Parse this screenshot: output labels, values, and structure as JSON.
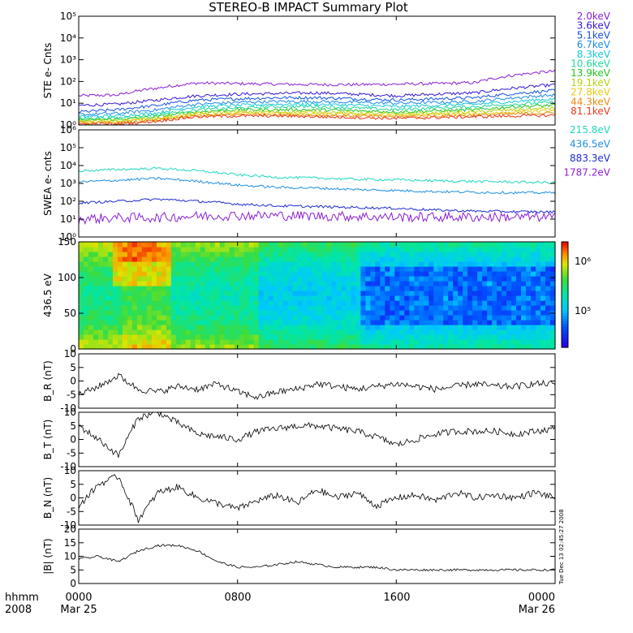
{
  "title": "STEREO-B IMPACT Summary Plot",
  "stamp": "Tue Dec 13 02:45:27 2008",
  "chart_data": [
    {
      "id": "ste",
      "type": "line",
      "ylabel": "STE e- Cnts",
      "yscale": "log",
      "ylim": [
        1,
        100000
      ],
      "yticks": [
        "10⁰",
        "10¹",
        "10²",
        "10³",
        "10⁴",
        "10⁵"
      ],
      "x": [
        0,
        2,
        4,
        6,
        8,
        10,
        12,
        14,
        16,
        18,
        20,
        22,
        24
      ],
      "series": [
        {
          "name": "2.0keV",
          "color": "#8B1FD6",
          "values": [
            22,
            24,
            50,
            85,
            80,
            75,
            72,
            72,
            75,
            80,
            88,
            200,
            300
          ]
        },
        {
          "name": "3.6keV",
          "color": "#3316D6",
          "values": [
            8,
            9,
            14,
            22,
            26,
            28,
            30,
            26,
            22,
            26,
            30,
            50,
            70
          ]
        },
        {
          "name": "5.1keV",
          "color": "#1450E0",
          "values": [
            4,
            5,
            8,
            14,
            16,
            18,
            18,
            16,
            14,
            16,
            18,
            28,
            38
          ]
        },
        {
          "name": "6.7keV",
          "color": "#1E8AE6",
          "values": [
            3,
            3.4,
            5,
            9,
            11,
            12,
            12,
            11,
            10,
            11,
            12,
            18,
            24
          ]
        },
        {
          "name": "8.3keV",
          "color": "#16C8D8",
          "values": [
            2.4,
            2.6,
            3.6,
            7,
            8,
            9,
            9,
            8,
            7,
            8,
            9,
            12,
            16
          ]
        },
        {
          "name": "10.6keV",
          "color": "#1ED89A",
          "values": [
            2,
            2.1,
            3,
            5,
            6,
            7,
            7,
            6,
            5,
            6,
            7,
            9,
            11
          ]
        },
        {
          "name": "13.9keV",
          "color": "#22C620",
          "values": [
            1.7,
            1.8,
            2.4,
            4,
            5,
            5,
            5,
            4.5,
            4,
            4.5,
            5,
            7,
            8
          ]
        },
        {
          "name": "19.1keV",
          "color": "#B4D410",
          "values": [
            1.5,
            1.6,
            2,
            3.4,
            4,
            4,
            4,
            3.6,
            3.2,
            3.6,
            4,
            5,
            6
          ]
        },
        {
          "name": "27.8keV",
          "color": "#E8C810",
          "values": [
            1.3,
            1.4,
            1.8,
            3,
            3.4,
            3.4,
            3.2,
            3,
            2.8,
            3,
            3.2,
            4,
            4.5
          ]
        },
        {
          "name": "44.3keV",
          "color": "#E88A10",
          "values": [
            1.2,
            1.2,
            1.6,
            2.6,
            3,
            3,
            2.8,
            2.6,
            2.4,
            2.6,
            2.8,
            3.2,
            3.6
          ]
        },
        {
          "name": "81.1keV",
          "color": "#E8381A",
          "values": [
            1.1,
            1.1,
            1.5,
            2.4,
            2.6,
            2.6,
            2.4,
            2.2,
            2,
            2.2,
            2.4,
            2.6,
            2.8
          ]
        }
      ]
    },
    {
      "id": "swea",
      "type": "line",
      "ylabel": "SWEA e- cnts",
      "yscale": "log",
      "ylim": [
        1,
        1000000
      ],
      "yticks": [
        "10⁰",
        "10¹",
        "10²",
        "10³",
        "10⁴",
        "10⁵",
        "10⁶"
      ],
      "x": [
        0,
        2,
        4,
        6,
        8,
        10,
        12,
        14,
        16,
        18,
        20,
        22,
        24
      ],
      "series": [
        {
          "name": "215.8eV",
          "color": "#1ED8C0",
          "values": [
            5000,
            6000,
            7000,
            5000,
            3000,
            2200,
            2000,
            1700,
            1600,
            1400,
            1300,
            1200,
            1100
          ]
        },
        {
          "name": "436.5eV",
          "color": "#1E90E0",
          "values": [
            1200,
            1500,
            1900,
            1300,
            800,
            600,
            550,
            450,
            400,
            350,
            320,
            300,
            300
          ]
        },
        {
          "name": "883.3eV",
          "color": "#1E2AD0",
          "values": [
            80,
            100,
            130,
            100,
            70,
            55,
            50,
            45,
            40,
            32,
            28,
            26,
            25
          ]
        },
        {
          "name": "1787.2eV",
          "color": "#8B1FD6",
          "values": [
            10,
            12,
            12,
            15,
            16,
            16,
            15,
            14,
            13,
            13,
            13,
            13,
            13
          ]
        }
      ]
    },
    {
      "id": "pad",
      "type": "heatmap",
      "ylabel": "436.5 eV",
      "ylim": [
        0,
        180
      ],
      "yticks": [
        "0",
        "50",
        "100",
        "150"
      ],
      "colorbar": {
        "ticks": [
          "10⁶",
          "10⁵"
        ]
      }
    },
    {
      "id": "br",
      "type": "line",
      "ylabel": "B_R (nT)",
      "ylim": [
        -10,
        10
      ],
      "yticks": [
        "-10",
        "-5",
        "0",
        "5",
        "10"
      ],
      "x": [
        0,
        1,
        2,
        3,
        4,
        5,
        6,
        7,
        8,
        9,
        10,
        11,
        12,
        13,
        14,
        15,
        16,
        17,
        18,
        19,
        20,
        21,
        22,
        23,
        24
      ],
      "values": [
        -5,
        -2,
        2,
        -3,
        -4,
        -2,
        -3,
        -1,
        -4,
        -6,
        -4,
        -3,
        -1,
        -2,
        -3,
        -2,
        -1,
        -2,
        -3,
        -2,
        -1,
        -2,
        -2,
        -1,
        -1
      ]
    },
    {
      "id": "bt",
      "type": "line",
      "ylabel": "B_T (nT)",
      "ylim": [
        -10,
        10
      ],
      "yticks": [
        "-10",
        "-5",
        "0",
        "5",
        "10"
      ],
      "x": [
        0,
        1,
        2,
        3,
        4,
        5,
        6,
        7,
        8,
        9,
        10,
        11,
        12,
        13,
        14,
        15,
        16,
        17,
        18,
        19,
        20,
        21,
        22,
        23,
        24
      ],
      "values": [
        5,
        0,
        -6,
        8,
        10,
        6,
        2,
        1,
        0,
        3,
        4,
        5,
        5,
        4,
        3,
        1,
        -2,
        0,
        2,
        3,
        3,
        3,
        2,
        3,
        4
      ]
    },
    {
      "id": "bn",
      "type": "line",
      "ylabel": "B_N (nT)",
      "ylim": [
        -10,
        10
      ],
      "yticks": [
        "-10",
        "-5",
        "0",
        "5",
        "10"
      ],
      "x": [
        0,
        1,
        2,
        3,
        4,
        5,
        6,
        7,
        8,
        9,
        10,
        11,
        12,
        13,
        14,
        15,
        16,
        17,
        18,
        19,
        20,
        21,
        22,
        23,
        24
      ],
      "values": [
        -3,
        5,
        8,
        -8,
        2,
        4,
        0,
        -2,
        -4,
        -1,
        1,
        -2,
        3,
        0,
        2,
        -3,
        0,
        1,
        -1,
        2,
        0,
        1,
        0,
        2,
        0
      ]
    },
    {
      "id": "bmag",
      "type": "line",
      "ylabel": "|B| (nT)",
      "ylim": [
        0,
        20
      ],
      "yticks": [
        "0",
        "5",
        "10",
        "15",
        "20"
      ],
      "x": [
        0,
        1,
        2,
        3,
        4,
        5,
        6,
        7,
        8,
        9,
        10,
        11,
        12,
        13,
        14,
        15,
        16,
        17,
        18,
        19,
        20,
        21,
        22,
        23,
        24
      ],
      "values": [
        9,
        10,
        8,
        12,
        14,
        14,
        12,
        8,
        6,
        6,
        7,
        8,
        7,
        6,
        6,
        6,
        5,
        5,
        5,
        5,
        5,
        5,
        5,
        5,
        5
      ]
    }
  ],
  "xaxis": {
    "ticks": [
      "0000",
      "0800",
      "1600",
      "0000"
    ],
    "subticks": [
      "Mar 25",
      "Mar 26"
    ],
    "leftlabel1": "hhmm",
    "leftlabel2": "2008"
  }
}
